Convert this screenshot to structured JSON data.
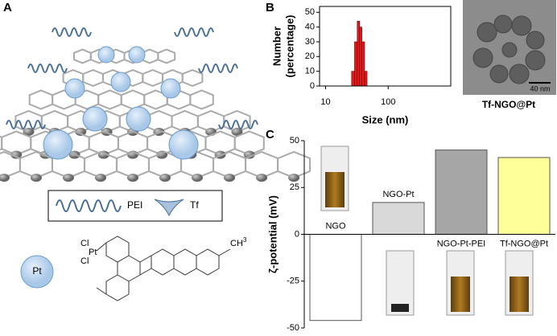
{
  "panels": {
    "a": "A",
    "b": "B",
    "c": "C"
  },
  "legend": {
    "pei": "PEI",
    "tf": "Tf",
    "pt": "Pt"
  },
  "structure": {
    "cl1": "Cl",
    "cl2": "Cl",
    "pt": "Pt",
    "methyl": "CH",
    "methyl_sub": "3"
  },
  "tem": {
    "caption": "Tf-NGO@Pt",
    "scale": "40 nm"
  },
  "chart_data": [
    {
      "type": "histogram",
      "xlabel": "Size (nm)",
      "ylabel": [
        "Number",
        "(percentage)"
      ],
      "bins": [
        26,
        29,
        32,
        35,
        38,
        42,
        46
      ],
      "counts": [
        10,
        30,
        44,
        40,
        30,
        10
      ],
      "color": "#e31a1c",
      "xscale": "log",
      "xlim": [
        8,
        1000
      ],
      "xticks": [
        10,
        100
      ],
      "ylim": [
        0,
        54
      ],
      "yticks": [
        0,
        10,
        20,
        30,
        40,
        50
      ]
    },
    {
      "type": "bar",
      "ylabel": "ζ-potential (mV)",
      "categories": [
        "NGO",
        "NGO-Pt",
        "NGO-Pt-PEI",
        "Tf-NGO@Pt"
      ],
      "values": [
        -46,
        17,
        45,
        41
      ],
      "colors": [
        "#ffffff",
        "#d9d9d9",
        "#a6a6a6",
        "#ffff99"
      ],
      "ylim": [
        -50,
        50
      ],
      "yticks": [
        -50,
        -25,
        0,
        25,
        50
      ]
    }
  ]
}
